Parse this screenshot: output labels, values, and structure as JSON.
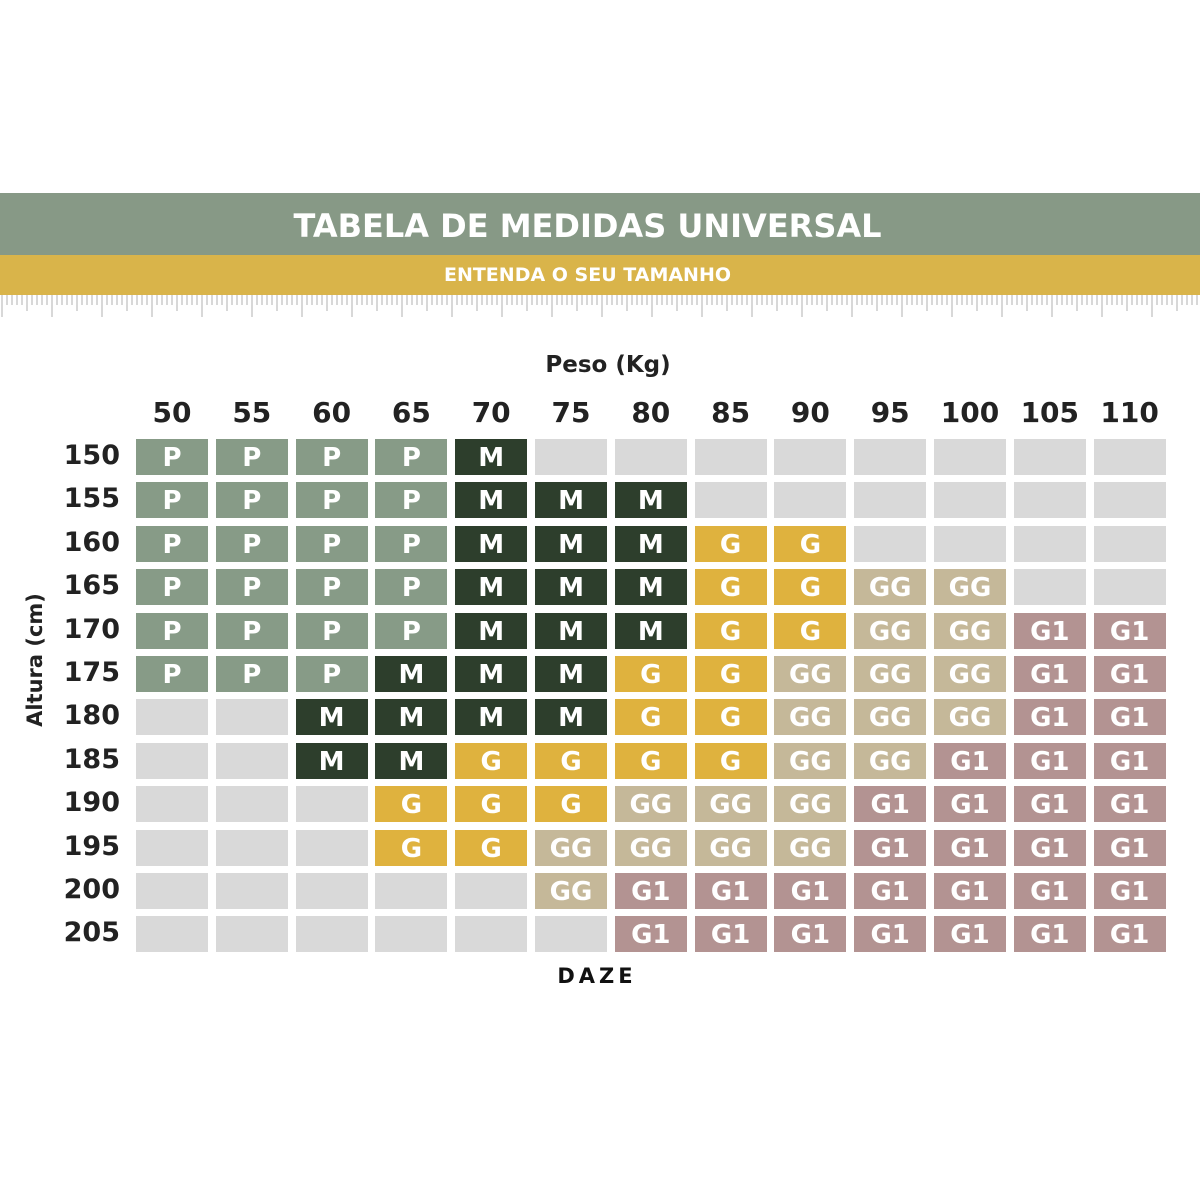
{
  "header": {
    "title": "TABELA DE MEDIDAS UNIVERSAL",
    "subtitle": "ENTENDA O SEU TAMANHO"
  },
  "table": {
    "column_label": "Peso (Kg)",
    "row_label": "Altura (cm)",
    "columns": [
      50,
      55,
      60,
      65,
      70,
      75,
      80,
      85,
      90,
      95,
      100,
      105,
      110
    ],
    "rows": [
      150,
      155,
      160,
      165,
      170,
      175,
      180,
      185,
      190,
      195,
      200,
      205
    ],
    "cells": [
      [
        "P",
        "P",
        "P",
        "P",
        "M",
        null,
        null,
        null,
        null,
        null,
        null,
        null,
        null
      ],
      [
        "P",
        "P",
        "P",
        "P",
        "M",
        "M",
        "M",
        null,
        null,
        null,
        null,
        null,
        null
      ],
      [
        "P",
        "P",
        "P",
        "P",
        "M",
        "M",
        "M",
        "G",
        "G",
        null,
        null,
        null,
        null
      ],
      [
        "P",
        "P",
        "P",
        "P",
        "M",
        "M",
        "M",
        "G",
        "G",
        "GG",
        "GG",
        null,
        null
      ],
      [
        "P",
        "P",
        "P",
        "P",
        "M",
        "M",
        "M",
        "G",
        "G",
        "GG",
        "GG",
        "G1",
        "G1"
      ],
      [
        "P",
        "P",
        "P",
        "M",
        "M",
        "M",
        "G",
        "G",
        "GG",
        "GG",
        "GG",
        "G1",
        "G1"
      ],
      [
        null,
        null,
        "M",
        "M",
        "M",
        "M",
        "G",
        "G",
        "GG",
        "GG",
        "GG",
        "G1",
        "G1"
      ],
      [
        null,
        null,
        "M",
        "M",
        "G",
        "G",
        "G",
        "G",
        "GG",
        "GG",
        "G1",
        "G1",
        "G1"
      ],
      [
        null,
        null,
        null,
        "G",
        "G",
        "G",
        "GG",
        "GG",
        "GG",
        "G1",
        "G1",
        "G1",
        "G1"
      ],
      [
        null,
        null,
        null,
        "G",
        "G",
        "GG",
        "GG",
        "GG",
        "GG",
        "G1",
        "G1",
        "G1",
        "G1"
      ],
      [
        null,
        null,
        null,
        null,
        null,
        "GG",
        "G1",
        "G1",
        "G1",
        "G1",
        "G1",
        "G1",
        "G1"
      ],
      [
        null,
        null,
        null,
        null,
        null,
        null,
        "G1",
        "G1",
        "G1",
        "G1",
        "G1",
        "G1",
        "G1"
      ]
    ]
  },
  "footer": {
    "brand": "DAZE"
  }
}
